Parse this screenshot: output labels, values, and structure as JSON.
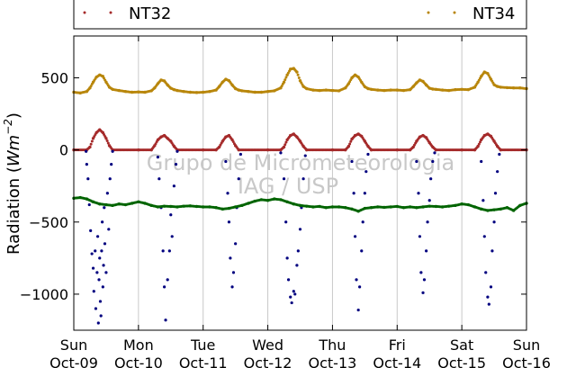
{
  "chart_data": {
    "type": "scatter",
    "ylabel_text": "Radiation (",
    "ylabel_unit": "Wm",
    "ylabel_exp": "−2",
    "ylabel_close": ")",
    "ylim": [
      -1250,
      790
    ],
    "yticks": [
      {
        "value": 500,
        "label": "500"
      },
      {
        "value": 0,
        "label": "0"
      },
      {
        "value": -500,
        "label": "−500"
      },
      {
        "value": -1000,
        "label": "−1000"
      }
    ],
    "xlim": [
      0,
      7
    ],
    "xticks": [
      {
        "value": 0,
        "day": "Sun",
        "date": "Oct-09"
      },
      {
        "value": 1,
        "day": "Mon",
        "date": "Oct-10"
      },
      {
        "value": 2,
        "day": "Tue",
        "date": "Oct-11"
      },
      {
        "value": 3,
        "day": "Wed",
        "date": "Oct-12"
      },
      {
        "value": 4,
        "day": "Thu",
        "date": "Oct-13"
      },
      {
        "value": 5,
        "day": "Fri",
        "date": "Oct-14"
      },
      {
        "value": 6,
        "day": "Sat",
        "date": "Oct-15"
      },
      {
        "value": 7,
        "day": "Sun",
        "date": "Oct-16"
      }
    ],
    "grid": "vertical",
    "legend": {
      "placement": "top",
      "entries": [
        {
          "label": "NT32",
          "color": "#a52a2a"
        },
        {
          "label": "NT34",
          "color": "#b8860b"
        }
      ]
    },
    "watermark": [
      "Grupo de Micrometeorologia",
      "IAG / USP"
    ],
    "series": [
      {
        "name": "NT34",
        "color": "#b8860b",
        "style": "dense-points",
        "x": [
          0.0,
          0.1,
          0.2,
          0.25,
          0.3,
          0.35,
          0.4,
          0.45,
          0.5,
          0.55,
          0.6,
          0.7,
          0.8,
          0.9,
          1.0,
          1.1,
          1.2,
          1.25,
          1.3,
          1.35,
          1.4,
          1.45,
          1.5,
          1.55,
          1.6,
          1.7,
          1.8,
          1.9,
          2.0,
          2.1,
          2.2,
          2.25,
          2.3,
          2.35,
          2.4,
          2.45,
          2.5,
          2.55,
          2.6,
          2.7,
          2.8,
          2.9,
          3.0,
          3.1,
          3.2,
          3.25,
          3.3,
          3.35,
          3.4,
          3.45,
          3.5,
          3.55,
          3.6,
          3.7,
          3.8,
          3.9,
          4.0,
          4.1,
          4.2,
          4.25,
          4.3,
          4.35,
          4.4,
          4.45,
          4.5,
          4.55,
          4.6,
          4.7,
          4.8,
          4.9,
          5.0,
          5.1,
          5.2,
          5.25,
          5.3,
          5.35,
          5.4,
          5.45,
          5.5,
          5.55,
          5.6,
          5.7,
          5.8,
          5.9,
          6.0,
          6.1,
          6.2,
          6.25,
          6.3,
          6.35,
          6.4,
          6.45,
          6.5,
          6.55,
          6.6,
          6.7,
          6.8,
          6.9,
          7.0
        ],
        "values": [
          400,
          395,
          405,
          430,
          470,
          505,
          520,
          510,
          470,
          435,
          420,
          412,
          405,
          400,
          402,
          400,
          410,
          430,
          460,
          485,
          478,
          450,
          428,
          418,
          412,
          405,
          400,
          398,
          400,
          405,
          415,
          440,
          470,
          490,
          480,
          450,
          425,
          415,
          410,
          405,
          400,
          400,
          405,
          410,
          430,
          470,
          520,
          560,
          565,
          540,
          480,
          440,
          425,
          415,
          412,
          415,
          412,
          410,
          430,
          460,
          500,
          520,
          505,
          470,
          438,
          425,
          420,
          415,
          412,
          415,
          415,
          412,
          418,
          440,
          465,
          485,
          475,
          450,
          428,
          422,
          420,
          415,
          412,
          418,
          420,
          418,
          435,
          470,
          510,
          540,
          530,
          490,
          452,
          440,
          435,
          432,
          430,
          430,
          425
        ]
      },
      {
        "name": "NT32",
        "color": "#a52a2a",
        "style": "dense-points",
        "x": [
          0.0,
          0.2,
          0.25,
          0.3,
          0.35,
          0.4,
          0.45,
          0.5,
          0.55,
          0.6,
          1.0,
          1.2,
          1.25,
          1.3,
          1.35,
          1.4,
          1.45,
          1.5,
          1.55,
          1.6,
          2.0,
          2.2,
          2.25,
          2.3,
          2.35,
          2.4,
          2.45,
          2.5,
          2.55,
          3.0,
          3.2,
          3.25,
          3.3,
          3.35,
          3.4,
          3.45,
          3.5,
          3.55,
          3.6,
          4.0,
          4.2,
          4.25,
          4.3,
          4.35,
          4.4,
          4.45,
          4.5,
          4.55,
          4.6,
          5.0,
          5.2,
          5.25,
          5.3,
          5.35,
          5.4,
          5.45,
          5.5,
          5.55,
          5.6,
          6.0,
          6.2,
          6.25,
          6.3,
          6.35,
          6.4,
          6.45,
          6.5,
          6.55,
          6.6,
          7.0
        ],
        "values": [
          0,
          0,
          20,
          80,
          120,
          140,
          120,
          80,
          30,
          0,
          0,
          0,
          30,
          70,
          90,
          100,
          80,
          60,
          25,
          0,
          0,
          0,
          20,
          60,
          90,
          100,
          70,
          30,
          0,
          0,
          0,
          20,
          70,
          100,
          110,
          90,
          60,
          25,
          0,
          0,
          0,
          25,
          75,
          100,
          110,
          95,
          60,
          25,
          0,
          0,
          0,
          20,
          60,
          90,
          100,
          85,
          50,
          20,
          0,
          0,
          0,
          25,
          70,
          100,
          110,
          95,
          60,
          25,
          0,
          0
        ]
      },
      {
        "name": "",
        "color": "#00007f",
        "style": "scattered-points",
        "x": [
          0.19,
          0.2,
          0.22,
          0.24,
          0.26,
          0.28,
          0.3,
          0.31,
          0.33,
          0.34,
          0.36,
          0.37,
          0.38,
          0.39,
          0.4,
          0.41,
          0.42,
          0.43,
          0.44,
          0.45,
          0.46,
          0.47,
          0.48,
          0.5,
          0.52,
          0.54,
          0.56,
          0.58,
          0.6,
          1.3,
          1.32,
          1.35,
          1.38,
          1.4,
          1.42,
          1.45,
          1.48,
          1.5,
          1.52,
          1.55,
          1.58,
          1.6,
          2.35,
          2.38,
          2.4,
          2.42,
          2.45,
          2.47,
          2.5,
          2.52,
          2.55,
          2.58,
          3.2,
          3.25,
          3.28,
          3.3,
          3.32,
          3.35,
          3.37,
          3.4,
          3.42,
          3.45,
          3.47,
          3.5,
          3.52,
          3.55,
          3.58,
          4.3,
          4.33,
          4.35,
          4.37,
          4.4,
          4.42,
          4.45,
          4.47,
          4.5,
          4.52,
          4.55,
          5.3,
          5.33,
          5.35,
          5.37,
          5.4,
          5.42,
          5.45,
          5.47,
          5.5,
          5.52,
          5.55,
          5.58,
          6.3,
          6.33,
          6.35,
          6.37,
          6.4,
          6.42,
          6.45,
          6.47,
          6.5,
          6.52,
          6.55,
          6.58
        ],
        "values": [
          -10,
          -100,
          -200,
          -380,
          -560,
          -720,
          -820,
          -980,
          -700,
          -1100,
          -850,
          -600,
          -1200,
          -900,
          -750,
          -1050,
          -1150,
          -700,
          -500,
          -950,
          -800,
          -400,
          -650,
          -850,
          -300,
          -550,
          -200,
          -100,
          -10,
          -50,
          -200,
          -400,
          -700,
          -950,
          -1180,
          -900,
          -700,
          -450,
          -600,
          -250,
          -100,
          -10,
          -80,
          -300,
          -500,
          -750,
          -950,
          -850,
          -650,
          -400,
          -200,
          -30,
          -20,
          -200,
          -500,
          -750,
          -900,
          -1020,
          -1060,
          -980,
          -1000,
          -800,
          -700,
          -550,
          -400,
          -200,
          -40,
          -80,
          -300,
          -600,
          -900,
          -1110,
          -950,
          -700,
          -500,
          -300,
          -150,
          -30,
          -80,
          -300,
          -600,
          -850,
          -990,
          -900,
          -700,
          -500,
          -350,
          -200,
          -80,
          -20,
          -80,
          -350,
          -600,
          -850,
          -1020,
          -1070,
          -950,
          -700,
          -500,
          -300,
          -150,
          -30
        ]
      },
      {
        "name": "",
        "color": "#006400",
        "style": "dense-points",
        "x": [
          0.0,
          0.1,
          0.2,
          0.3,
          0.4,
          0.5,
          0.6,
          0.7,
          0.8,
          0.9,
          1.0,
          1.1,
          1.2,
          1.3,
          1.4,
          1.5,
          1.6,
          1.7,
          1.8,
          1.9,
          2.0,
          2.1,
          2.2,
          2.3,
          2.4,
          2.5,
          2.6,
          2.7,
          2.8,
          2.9,
          3.0,
          3.1,
          3.2,
          3.3,
          3.4,
          3.5,
          3.6,
          3.7,
          3.8,
          3.9,
          4.0,
          4.1,
          4.2,
          4.3,
          4.4,
          4.5,
          4.6,
          4.7,
          4.8,
          4.9,
          5.0,
          5.1,
          5.2,
          5.3,
          5.4,
          5.5,
          5.6,
          5.7,
          5.8,
          5.9,
          6.0,
          6.1,
          6.2,
          6.3,
          6.4,
          6.5,
          6.6,
          6.7,
          6.8,
          6.9,
          7.0
        ],
        "values": [
          -335,
          -330,
          -340,
          -360,
          -375,
          -380,
          -385,
          -375,
          -380,
          -370,
          -360,
          -370,
          -385,
          -395,
          -390,
          -392,
          -395,
          -390,
          -388,
          -392,
          -395,
          -395,
          -400,
          -410,
          -405,
          -395,
          -385,
          -370,
          -355,
          -345,
          -350,
          -340,
          -345,
          -360,
          -375,
          -385,
          -390,
          -395,
          -392,
          -400,
          -395,
          -395,
          -400,
          -410,
          -425,
          -405,
          -400,
          -395,
          -398,
          -395,
          -392,
          -400,
          -395,
          -400,
          -395,
          -390,
          -392,
          -395,
          -390,
          -385,
          -375,
          -380,
          -395,
          -410,
          -420,
          -415,
          -410,
          -400,
          -420,
          -385,
          -370
        ]
      }
    ]
  }
}
